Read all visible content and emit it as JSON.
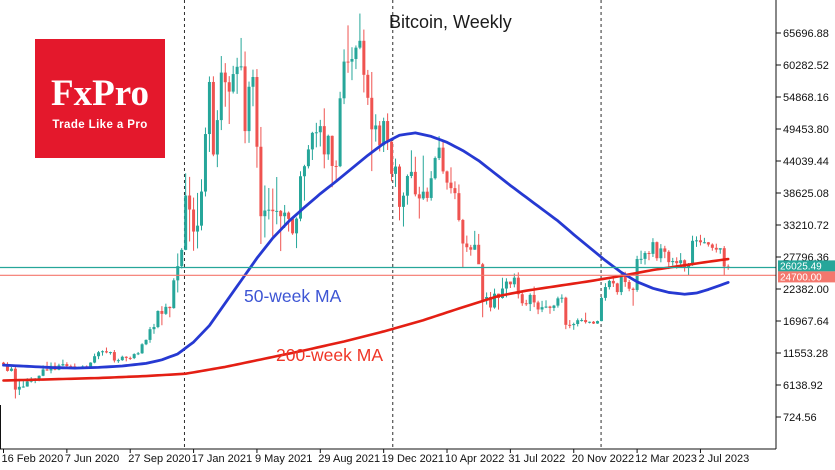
{
  "logo": {
    "brand": "FxPro",
    "tagline": "Trade Like a Pro",
    "bg_color": "#e4182c"
  },
  "chart_data": {
    "type": "candlestick",
    "title": "Bitcoin, Weekly",
    "symbol": "Bitcoin",
    "timeframe": "Weekly",
    "xlabel": "",
    "ylabel": "",
    "grid": "vertical dashed year lines only",
    "legend_position": "none",
    "ylim": [
      724.56,
      65696.88
    ],
    "colors": {
      "up": "#26a69a",
      "down": "#ef5350",
      "ma50": "#2639d2",
      "ma200": "#e41f14",
      "axis": "#111111",
      "gridline": "#2e2e2e",
      "current_price_line": "#26a69a",
      "support_price_line": "#f4776d"
    },
    "y_axis": {
      "side": "right",
      "ticks": [
        "65696.88",
        "60282.52",
        "54868.16",
        "49453.80",
        "44039.44",
        "38625.08",
        "33210.72",
        "27796.36",
        "22382.00",
        "16967.64",
        "11553.28",
        "6138.92",
        "724.56"
      ]
    },
    "x_axis": {
      "ticks": [
        {
          "index": 0,
          "label": "16 Feb 2020"
        },
        {
          "index": 16,
          "label": "7 Jun 2020"
        },
        {
          "index": 32,
          "label": "27 Sep 2020"
        },
        {
          "index": 48,
          "label": "17 Jan 2021"
        },
        {
          "index": 64,
          "label": "9 May 2021"
        },
        {
          "index": 80,
          "label": "29 Aug 2021"
        },
        {
          "index": 96,
          "label": "19 Dec 2021"
        },
        {
          "index": 112,
          "label": "10 Apr 2022"
        },
        {
          "index": 128,
          "label": "31 Jul 2022"
        },
        {
          "index": 144,
          "label": "20 Nov 2022"
        },
        {
          "index": 160,
          "label": "12 Mar 2023"
        },
        {
          "index": 176,
          "label": "2 Jul 2023"
        }
      ]
    },
    "year_gridlines": {
      "labels": [
        "1 Jan 2021",
        "1 Jan 2022",
        "1 Jan 2023"
      ],
      "indices": [
        45.7,
        98.3,
        150.9
      ]
    },
    "price_lines": [
      {
        "label": "26025.49",
        "value": 26025.49,
        "color": "#26a69a",
        "meaning": "current price"
      },
      {
        "label": "24700.00",
        "value": 24700.0,
        "color": "#f4776d",
        "meaning": "support level"
      }
    ],
    "ma_labels": [
      {
        "text": "50-week MA",
        "color": "#3d55d4"
      },
      {
        "text": "200-week MA",
        "color": "#ef3526"
      }
    ],
    "candles": [
      [
        9920,
        10050,
        9350,
        9660
      ],
      [
        9660,
        9990,
        8410,
        8530
      ],
      [
        8530,
        9190,
        8420,
        8900
      ],
      [
        8900,
        9170,
        3860,
        5360
      ],
      [
        5360,
        6940,
        4440,
        5830
      ],
      [
        5830,
        6870,
        5680,
        5880
      ],
      [
        5880,
        7290,
        5850,
        6740
      ],
      [
        6740,
        7470,
        6550,
        6870
      ],
      [
        6870,
        7300,
        6450,
        7120
      ],
      [
        7120,
        7760,
        6770,
        7700
      ],
      [
        7700,
        9470,
        7630,
        8770
      ],
      [
        8770,
        10070,
        8530,
        8600
      ],
      [
        8600,
        9950,
        8110,
        9380
      ],
      [
        9380,
        9950,
        8630,
        8720
      ],
      [
        8720,
        9740,
        8640,
        9450
      ],
      [
        9450,
        10430,
        9330,
        9670
      ],
      [
        9670,
        9990,
        8910,
        9340
      ],
      [
        9340,
        9590,
        8830,
        9300
      ],
      [
        9300,
        9780,
        8830,
        9010
      ],
      [
        9010,
        9230,
        8890,
        9070
      ],
      [
        9070,
        9470,
        9020,
        9300
      ],
      [
        9300,
        9450,
        9050,
        9170
      ],
      [
        9170,
        9990,
        9100,
        9930
      ],
      [
        9930,
        11450,
        9810,
        11010
      ],
      [
        11010,
        11900,
        10510,
        11680
      ],
      [
        11680,
        11990,
        11100,
        11850
      ],
      [
        11850,
        12480,
        11500,
        11650
      ],
      [
        11650,
        11780,
        11280,
        11710
      ],
      [
        11710,
        12060,
        9950,
        10280
      ],
      [
        10280,
        10590,
        9880,
        10340
      ],
      [
        10340,
        11100,
        10230,
        10920
      ],
      [
        10920,
        11010,
        10140,
        10720
      ],
      [
        10720,
        10950,
        10380,
        10690
      ],
      [
        10690,
        11500,
        10520,
        11370
      ],
      [
        11370,
        11730,
        11200,
        11500
      ],
      [
        11500,
        13200,
        11410,
        13030
      ],
      [
        13030,
        13850,
        12880,
        13770
      ],
      [
        13770,
        15960,
        13280,
        15580
      ],
      [
        15580,
        16480,
        14800,
        15950
      ],
      [
        15950,
        18770,
        15750,
        18660
      ],
      [
        18660,
        19480,
        16250,
        18180
      ],
      [
        18180,
        19900,
        18000,
        19360
      ],
      [
        19360,
        19420,
        17600,
        19150
      ],
      [
        19150,
        24200,
        19050,
        23850
      ],
      [
        23850,
        28400,
        21800,
        26250
      ],
      [
        26250,
        29300,
        25850,
        29000
      ],
      [
        29000,
        41950,
        28950,
        38200
      ],
      [
        38200,
        41350,
        30420,
        35830
      ],
      [
        35830,
        37850,
        28850,
        32100
      ],
      [
        32100,
        38640,
        29250,
        33100
      ],
      [
        33100,
        40950,
        32300,
        38870
      ],
      [
        38870,
        49700,
        38040,
        48600
      ],
      [
        48600,
        58350,
        45570,
        57410
      ],
      [
        57410,
        58370,
        44850,
        45140
      ],
      [
        45140,
        52640,
        43000,
        50960
      ],
      [
        50960,
        61800,
        49270,
        59000
      ],
      [
        59000,
        60600,
        53220,
        57370
      ],
      [
        57370,
        58400,
        50300,
        55780
      ],
      [
        55780,
        60140,
        55460,
        58750
      ],
      [
        58750,
        61500,
        55400,
        59980
      ],
      [
        59980,
        64860,
        59370,
        60050
      ],
      [
        60050,
        62570,
        47040,
        49100
      ],
      [
        49100,
        57480,
        47110,
        56600
      ],
      [
        56600,
        59500,
        53300,
        58250
      ],
      [
        58250,
        59590,
        42900,
        46450
      ],
      [
        46450,
        49800,
        30000,
        34700
      ],
      [
        34700,
        39900,
        31100,
        35660
      ],
      [
        35660,
        39470,
        34150,
        35800
      ],
      [
        35800,
        39380,
        31000,
        35550
      ],
      [
        35550,
        41330,
        33330,
        35600
      ],
      [
        35600,
        35750,
        28800,
        34700
      ],
      [
        34700,
        36600,
        32700,
        35300
      ],
      [
        35300,
        35500,
        32100,
        34250
      ],
      [
        34250,
        34600,
        31550,
        31800
      ],
      [
        31800,
        34500,
        29300,
        34290
      ],
      [
        34290,
        42300,
        33850,
        41460
      ],
      [
        41460,
        43400,
        37330,
        43160
      ],
      [
        43160,
        46740,
        42780,
        46000
      ],
      [
        46000,
        48980,
        44210,
        48800
      ],
      [
        48800,
        50500,
        46350,
        48900
      ],
      [
        48900,
        51000,
        46500,
        49940
      ],
      [
        49940,
        52950,
        42800,
        45160
      ],
      [
        45160,
        48500,
        44230,
        48300
      ],
      [
        48300,
        48350,
        39600,
        43200
      ],
      [
        43200,
        44140,
        40750,
        43160
      ],
      [
        43160,
        55750,
        43000,
        54650
      ],
      [
        54650,
        62930,
        53670,
        60860
      ],
      [
        60860,
        66990,
        58960,
        60850
      ],
      [
        60850,
        63290,
        57720,
        61300
      ],
      [
        61300,
        63590,
        59590,
        63220
      ],
      [
        63220,
        68990,
        62950,
        64380
      ],
      [
        64380,
        66280,
        55640,
        58620
      ],
      [
        58620,
        59450,
        53520,
        54730
      ],
      [
        54730,
        59100,
        42330,
        49400
      ],
      [
        49400,
        51950,
        47320,
        50050
      ],
      [
        50050,
        50800,
        45670,
        46700
      ],
      [
        46700,
        51375,
        45560,
        50800
      ],
      [
        50800,
        52100,
        45900,
        47300
      ],
      [
        47300,
        47570,
        40610,
        41860
      ],
      [
        41860,
        44450,
        39650,
        43100
      ],
      [
        43100,
        43500,
        34000,
        36280
      ],
      [
        36280,
        38720,
        32950,
        38170
      ],
      [
        38170,
        41770,
        36650,
        41500
      ],
      [
        41500,
        45850,
        41130,
        42200
      ],
      [
        42200,
        44760,
        38050,
        38400
      ],
      [
        38400,
        39680,
        34300,
        37710
      ],
      [
        37710,
        44950,
        37450,
        38850
      ],
      [
        38850,
        39550,
        37160,
        37790
      ],
      [
        37790,
        42330,
        37330,
        41120
      ],
      [
        41120,
        44810,
        40890,
        44540
      ],
      [
        44540,
        48240,
        44200,
        46300
      ],
      [
        46300,
        47450,
        41870,
        42280
      ],
      [
        42280,
        42420,
        39200,
        40380
      ],
      [
        40380,
        42970,
        38540,
        39450
      ],
      [
        39450,
        40600,
        37580,
        38600
      ],
      [
        38600,
        40070,
        33800,
        34060
      ],
      [
        34060,
        34240,
        26000,
        30080
      ],
      [
        30080,
        31420,
        28650,
        29450
      ],
      [
        29450,
        29850,
        28020,
        29030
      ],
      [
        29030,
        32220,
        29000,
        29860
      ],
      [
        29860,
        31700,
        26950,
        26570
      ],
      [
        26570,
        26800,
        17600,
        20470
      ],
      [
        20470,
        21800,
        19750,
        21030
      ],
      [
        21030,
        21880,
        18600,
        19250
      ],
      [
        19250,
        22450,
        19050,
        21590
      ],
      [
        21590,
        21600,
        18900,
        20860
      ],
      [
        20860,
        24290,
        20750,
        22460
      ],
      [
        22460,
        24200,
        20970,
        23640
      ],
      [
        23640,
        23650,
        22550,
        23180
      ],
      [
        23180,
        25000,
        22660,
        24300
      ],
      [
        24300,
        25200,
        20780,
        21500
      ],
      [
        21500,
        21800,
        19540,
        19970
      ],
      [
        19970,
        20550,
        19520,
        19830
      ],
      [
        19830,
        21650,
        18650,
        21380
      ],
      [
        21380,
        22800,
        19320,
        20110
      ],
      [
        20110,
        20400,
        18130,
        18920
      ],
      [
        18920,
        20380,
        18470,
        19310
      ],
      [
        19310,
        20470,
        19150,
        19410
      ],
      [
        19410,
        19550,
        18190,
        19180
      ],
      [
        19180,
        19700,
        18650,
        19570
      ],
      [
        19570,
        21090,
        19230,
        20800
      ],
      [
        20800,
        21480,
        20050,
        20910
      ],
      [
        20910,
        21070,
        15590,
        16320
      ],
      [
        16320,
        17130,
        15750,
        16270
      ],
      [
        16270,
        16690,
        15480,
        16460
      ],
      [
        16460,
        17400,
        16050,
        17100
      ],
      [
        17100,
        17430,
        16870,
        17130
      ],
      [
        17130,
        18380,
        16530,
        16780
      ],
      [
        16780,
        16870,
        16570,
        16840
      ],
      [
        16840,
        16970,
        16460,
        16540
      ],
      [
        16540,
        17040,
        16490,
        16950
      ],
      [
        16950,
        21050,
        16930,
        20880
      ],
      [
        20880,
        23370,
        20400,
        22710
      ],
      [
        22710,
        23960,
        22300,
        23750
      ],
      [
        23750,
        24250,
        22720,
        23330
      ],
      [
        23330,
        23440,
        21420,
        21860
      ],
      [
        21860,
        25250,
        21350,
        24630
      ],
      [
        24630,
        25300,
        22750,
        23560
      ],
      [
        23560,
        23920,
        22000,
        22430
      ],
      [
        22430,
        22650,
        19550,
        22220
      ],
      [
        22220,
        28000,
        21900,
        27450
      ],
      [
        27450,
        28870,
        26600,
        27480
      ],
      [
        27480,
        28780,
        26510,
        28470
      ],
      [
        28470,
        28800,
        27250,
        28330
      ],
      [
        28330,
        30980,
        27800,
        30310
      ],
      [
        30310,
        30420,
        27150,
        27590
      ],
      [
        27590,
        29980,
        26900,
        29250
      ],
      [
        29250,
        29690,
        27600,
        28680
      ],
      [
        28680,
        28950,
        25750,
        26930
      ],
      [
        26930,
        27650,
        26350,
        27120
      ],
      [
        27120,
        27750,
        25800,
        26750
      ],
      [
        26750,
        28460,
        26480,
        27250
      ],
      [
        27250,
        27390,
        25330,
        25940
      ],
      [
        25940,
        26780,
        24750,
        26510
      ],
      [
        26510,
        31400,
        26300,
        30540
      ],
      [
        30540,
        31280,
        29500,
        30620
      ],
      [
        30620,
        31550,
        29750,
        30290
      ],
      [
        30290,
        31040,
        30080,
        30290
      ],
      [
        30290,
        30340,
        29560,
        29910
      ],
      [
        29910,
        30100,
        28860,
        29350
      ],
      [
        29350,
        30050,
        28550,
        29050
      ],
      [
        29050,
        29250,
        28350,
        29290
      ],
      [
        29290,
        29650,
        24716,
        26190
      ],
      [
        26190,
        26540,
        25630,
        26025
      ]
    ],
    "ma50_points": [
      [
        0,
        9500
      ],
      [
        6,
        9300
      ],
      [
        12,
        9100
      ],
      [
        18,
        9000
      ],
      [
        24,
        9120
      ],
      [
        30,
        9350
      ],
      [
        36,
        9800
      ],
      [
        40,
        10400
      ],
      [
        44,
        11400
      ],
      [
        48,
        13400
      ],
      [
        52,
        16200
      ],
      [
        56,
        20000
      ],
      [
        60,
        23800
      ],
      [
        64,
        27600
      ],
      [
        68,
        31000
      ],
      [
        72,
        33800
      ],
      [
        76,
        36200
      ],
      [
        80,
        38500
      ],
      [
        84,
        40600
      ],
      [
        88,
        42800
      ],
      [
        92,
        45000
      ],
      [
        96,
        47000
      ],
      [
        100,
        48400
      ],
      [
        104,
        48800
      ],
      [
        108,
        48200
      ],
      [
        112,
        47200
      ],
      [
        116,
        45800
      ],
      [
        120,
        44100
      ],
      [
        124,
        42000
      ],
      [
        128,
        39900
      ],
      [
        132,
        37900
      ],
      [
        136,
        35900
      ],
      [
        140,
        33900
      ],
      [
        144,
        31600
      ],
      [
        148,
        29400
      ],
      [
        152,
        27200
      ],
      [
        156,
        25200
      ],
      [
        160,
        23600
      ],
      [
        164,
        22500
      ],
      [
        168,
        21800
      ],
      [
        172,
        21500
      ],
      [
        175,
        21700
      ],
      [
        178,
        22300
      ],
      [
        181,
        23000
      ],
      [
        183,
        23500
      ]
    ],
    "ma200_points": [
      [
        0,
        6900
      ],
      [
        12,
        7100
      ],
      [
        24,
        7320
      ],
      [
        36,
        7650
      ],
      [
        46,
        8050
      ],
      [
        56,
        9200
      ],
      [
        66,
        10600
      ],
      [
        76,
        12000
      ],
      [
        86,
        13500
      ],
      [
        96,
        15200
      ],
      [
        106,
        17100
      ],
      [
        116,
        19300
      ],
      [
        125,
        21200
      ],
      [
        132,
        22100
      ],
      [
        140,
        22900
      ],
      [
        148,
        23700
      ],
      [
        156,
        24600
      ],
      [
        164,
        25600
      ],
      [
        171,
        26300
      ],
      [
        177,
        26900
      ],
      [
        183,
        27450
      ]
    ]
  }
}
